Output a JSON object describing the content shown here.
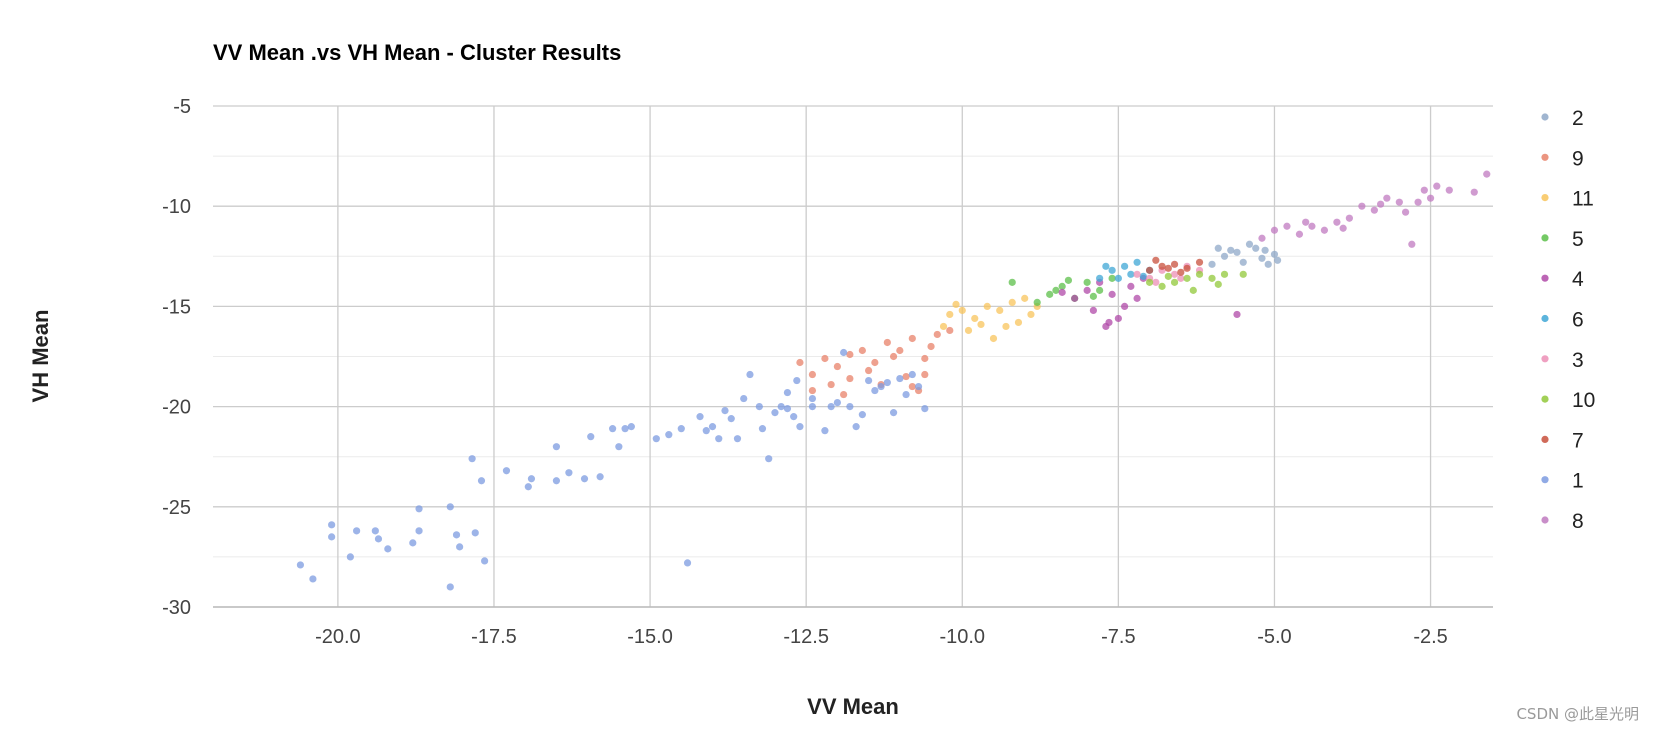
{
  "chart_data": {
    "type": "scatter",
    "title": "VV Mean .vs VH Mean - Cluster Results",
    "xlabel": "VV Mean",
    "ylabel": "VH Mean",
    "xlim": [
      -22,
      -1.5
    ],
    "ylim": [
      -30,
      -5
    ],
    "xticks": [
      "-20.0",
      "-17.5",
      "-15.0",
      "-12.5",
      "-10.0",
      "-7.5",
      "-5.0",
      "-2.5"
    ],
    "yticks": [
      "-5",
      "-10",
      "-15",
      "-20",
      "-25",
      "-30"
    ],
    "legend_position": "right",
    "series": [
      {
        "name": "2",
        "color": "#8fa8c8",
        "points": [
          [
            -6.0,
            -12.9
          ],
          [
            -5.8,
            -12.5
          ],
          [
            -5.6,
            -12.3
          ],
          [
            -5.5,
            -12.8
          ],
          [
            -5.3,
            -12.1
          ],
          [
            -5.2,
            -12.6
          ],
          [
            -5.1,
            -12.9
          ],
          [
            -5.0,
            -12.4
          ],
          [
            -5.4,
            -11.9
          ],
          [
            -5.7,
            -12.2
          ],
          [
            -5.9,
            -12.1
          ],
          [
            -5.15,
            -12.2
          ],
          [
            -4.95,
            -12.7
          ]
        ]
      },
      {
        "name": "9",
        "color": "#e8826a",
        "points": [
          [
            -12.6,
            -17.8
          ],
          [
            -12.4,
            -18.4
          ],
          [
            -12.2,
            -17.6
          ],
          [
            -12.0,
            -18.0
          ],
          [
            -11.8,
            -17.4
          ],
          [
            -11.6,
            -17.2
          ],
          [
            -11.4,
            -17.8
          ],
          [
            -11.2,
            -16.8
          ],
          [
            -11.0,
            -17.2
          ],
          [
            -10.8,
            -16.6
          ],
          [
            -10.6,
            -17.6
          ],
          [
            -10.4,
            -16.4
          ],
          [
            -10.2,
            -16.2
          ],
          [
            -11.8,
            -18.6
          ],
          [
            -11.5,
            -18.2
          ],
          [
            -10.9,
            -18.5
          ],
          [
            -10.7,
            -19.2
          ],
          [
            -12.4,
            -19.2
          ],
          [
            -11.3,
            -18.9
          ],
          [
            -10.5,
            -17.0
          ],
          [
            -10.8,
            -19.0
          ],
          [
            -11.9,
            -19.4
          ],
          [
            -10.6,
            -18.4
          ],
          [
            -11.1,
            -17.5
          ],
          [
            -12.1,
            -18.9
          ]
        ]
      },
      {
        "name": "11",
        "color": "#f8c45c",
        "points": [
          [
            -10.2,
            -15.4
          ],
          [
            -10.0,
            -15.2
          ],
          [
            -9.8,
            -15.6
          ],
          [
            -9.6,
            -15.0
          ],
          [
            -9.4,
            -15.2
          ],
          [
            -9.2,
            -14.8
          ],
          [
            -9.0,
            -14.6
          ],
          [
            -8.8,
            -15.0
          ],
          [
            -9.9,
            -16.2
          ],
          [
            -9.5,
            -16.6
          ],
          [
            -9.3,
            -16.0
          ],
          [
            -9.1,
            -15.8
          ],
          [
            -10.3,
            -16.0
          ],
          [
            -8.9,
            -15.4
          ],
          [
            -9.7,
            -15.9
          ],
          [
            -10.1,
            -14.9
          ]
        ]
      },
      {
        "name": "5",
        "color": "#5cbf4a",
        "points": [
          [
            -9.2,
            -13.8
          ],
          [
            -8.6,
            -14.4
          ],
          [
            -8.4,
            -14.0
          ],
          [
            -8.2,
            -14.6
          ],
          [
            -8.0,
            -13.8
          ],
          [
            -7.8,
            -14.2
          ],
          [
            -7.6,
            -13.6
          ],
          [
            -8.8,
            -14.8
          ],
          [
            -8.3,
            -13.7
          ],
          [
            -7.9,
            -14.5
          ],
          [
            -8.5,
            -14.2
          ]
        ]
      },
      {
        "name": "4",
        "color": "#b04aa8",
        "points": [
          [
            -8.2,
            -14.6
          ],
          [
            -8.0,
            -14.2
          ],
          [
            -7.8,
            -13.8
          ],
          [
            -7.6,
            -14.4
          ],
          [
            -7.4,
            -15.0
          ],
          [
            -7.2,
            -14.6
          ],
          [
            -7.9,
            -15.2
          ],
          [
            -7.5,
            -15.6
          ],
          [
            -7.7,
            -16.0
          ],
          [
            -7.3,
            -14.0
          ],
          [
            -7.1,
            -13.6
          ],
          [
            -5.6,
            -15.4
          ],
          [
            -8.4,
            -14.3
          ],
          [
            -7.65,
            -15.8
          ]
        ]
      },
      {
        "name": "6",
        "color": "#3fa7d6",
        "points": [
          [
            -7.8,
            -13.6
          ],
          [
            -7.6,
            -13.2
          ],
          [
            -7.4,
            -13.0
          ],
          [
            -7.2,
            -12.8
          ],
          [
            -7.0,
            -13.2
          ],
          [
            -7.5,
            -13.6
          ],
          [
            -7.3,
            -13.4
          ],
          [
            -7.7,
            -13.0
          ],
          [
            -7.1,
            -13.5
          ]
        ]
      },
      {
        "name": "3",
        "color": "#ec8fb6",
        "points": [
          [
            -7.2,
            -13.4
          ],
          [
            -7.0,
            -13.6
          ],
          [
            -6.8,
            -13.2
          ],
          [
            -6.6,
            -13.4
          ],
          [
            -6.4,
            -13.0
          ],
          [
            -6.2,
            -13.2
          ],
          [
            -6.9,
            -13.8
          ],
          [
            -6.5,
            -13.6
          ]
        ]
      },
      {
        "name": "10",
        "color": "#92c83a",
        "points": [
          [
            -7.0,
            -13.8
          ],
          [
            -6.8,
            -14.0
          ],
          [
            -6.6,
            -13.8
          ],
          [
            -6.4,
            -13.6
          ],
          [
            -6.2,
            -13.4
          ],
          [
            -6.0,
            -13.6
          ],
          [
            -5.8,
            -13.4
          ],
          [
            -6.3,
            -14.2
          ],
          [
            -5.9,
            -13.9
          ],
          [
            -6.7,
            -13.5
          ],
          [
            -5.5,
            -13.4
          ]
        ]
      },
      {
        "name": "7",
        "color": "#c8503c",
        "points": [
          [
            -7.0,
            -13.2
          ],
          [
            -6.8,
            -13.0
          ],
          [
            -6.6,
            -12.9
          ],
          [
            -6.4,
            -13.1
          ],
          [
            -6.2,
            -12.8
          ],
          [
            -6.9,
            -12.7
          ],
          [
            -6.5,
            -13.3
          ],
          [
            -6.7,
            -13.1
          ]
        ]
      },
      {
        "name": "1",
        "color": "#7c9be0",
        "points": [
          [
            -20.6,
            -27.9
          ],
          [
            -20.4,
            -28.6
          ],
          [
            -20.1,
            -26.5
          ],
          [
            -20.1,
            -25.9
          ],
          [
            -19.8,
            -27.5
          ],
          [
            -19.7,
            -26.2
          ],
          [
            -19.4,
            -26.2
          ],
          [
            -19.35,
            -26.6
          ],
          [
            -19.2,
            -27.1
          ],
          [
            -18.8,
            -26.8
          ],
          [
            -18.7,
            -26.2
          ],
          [
            -18.7,
            -25.1
          ],
          [
            -18.2,
            -29.0
          ],
          [
            -18.2,
            -25.0
          ],
          [
            -18.1,
            -26.4
          ],
          [
            -18.05,
            -27.0
          ],
          [
            -17.85,
            -22.6
          ],
          [
            -17.8,
            -26.3
          ],
          [
            -17.7,
            -23.7
          ],
          [
            -17.65,
            -27.7
          ],
          [
            -17.3,
            -23.2
          ],
          [
            -16.95,
            -24.0
          ],
          [
            -16.9,
            -23.6
          ],
          [
            -16.5,
            -22.0
          ],
          [
            -16.5,
            -23.7
          ],
          [
            -16.3,
            -23.3
          ],
          [
            -16.05,
            -23.6
          ],
          [
            -15.95,
            -21.5
          ],
          [
            -15.8,
            -23.5
          ],
          [
            -15.6,
            -21.1
          ],
          [
            -15.5,
            -22.0
          ],
          [
            -15.4,
            -21.1
          ],
          [
            -15.3,
            -21.0
          ],
          [
            -14.9,
            -21.6
          ],
          [
            -14.7,
            -21.4
          ],
          [
            -14.5,
            -21.1
          ],
          [
            -14.4,
            -27.8
          ],
          [
            -14.1,
            -21.2
          ],
          [
            -14.0,
            -21.0
          ],
          [
            -13.9,
            -21.6
          ],
          [
            -13.7,
            -20.6
          ],
          [
            -13.6,
            -21.6
          ],
          [
            -13.5,
            -19.6
          ],
          [
            -13.4,
            -18.4
          ],
          [
            -13.2,
            -21.1
          ],
          [
            -13.1,
            -22.6
          ],
          [
            -12.9,
            -20.0
          ],
          [
            -12.8,
            -20.1
          ],
          [
            -12.7,
            -20.5
          ],
          [
            -12.6,
            -21.0
          ],
          [
            -12.4,
            -20.0
          ],
          [
            -12.4,
            -19.6
          ],
          [
            -12.2,
            -21.2
          ],
          [
            -12.1,
            -20.0
          ],
          [
            -12.0,
            -19.8
          ],
          [
            -11.9,
            -17.3
          ],
          [
            -11.8,
            -20.0
          ],
          [
            -11.7,
            -21.0
          ],
          [
            -11.6,
            -20.4
          ],
          [
            -11.5,
            -18.7
          ],
          [
            -11.4,
            -19.2
          ],
          [
            -11.3,
            -19.0
          ],
          [
            -11.2,
            -18.8
          ],
          [
            -11.1,
            -20.3
          ],
          [
            -11.0,
            -18.6
          ],
          [
            -10.9,
            -19.4
          ],
          [
            -10.8,
            -18.4
          ],
          [
            -10.7,
            -19.0
          ],
          [
            -10.6,
            -20.1
          ],
          [
            -12.8,
            -19.3
          ],
          [
            -12.65,
            -18.7
          ],
          [
            -13.25,
            -20.0
          ],
          [
            -13.0,
            -20.3
          ],
          [
            -14.2,
            -20.5
          ],
          [
            -13.8,
            -20.2
          ]
        ]
      },
      {
        "name": "8",
        "color": "#c07ac0",
        "points": [
          [
            -5.2,
            -11.6
          ],
          [
            -5.0,
            -11.2
          ],
          [
            -4.8,
            -11.0
          ],
          [
            -4.6,
            -11.4
          ],
          [
            -4.4,
            -11.0
          ],
          [
            -4.2,
            -11.2
          ],
          [
            -4.0,
            -10.8
          ],
          [
            -3.8,
            -10.6
          ],
          [
            -3.4,
            -10.2
          ],
          [
            -3.2,
            -9.6
          ],
          [
            -3.0,
            -9.8
          ],
          [
            -2.9,
            -10.3
          ],
          [
            -2.8,
            -11.9
          ],
          [
            -2.6,
            -9.2
          ],
          [
            -2.5,
            -9.6
          ],
          [
            -2.4,
            -9.0
          ],
          [
            -2.2,
            -9.2
          ],
          [
            -1.8,
            -9.3
          ],
          [
            -1.6,
            -8.4
          ],
          [
            -3.6,
            -10.0
          ],
          [
            -3.3,
            -9.9
          ],
          [
            -2.7,
            -9.8
          ],
          [
            -4.5,
            -10.8
          ],
          [
            -3.9,
            -11.1
          ]
        ]
      }
    ]
  }
}
